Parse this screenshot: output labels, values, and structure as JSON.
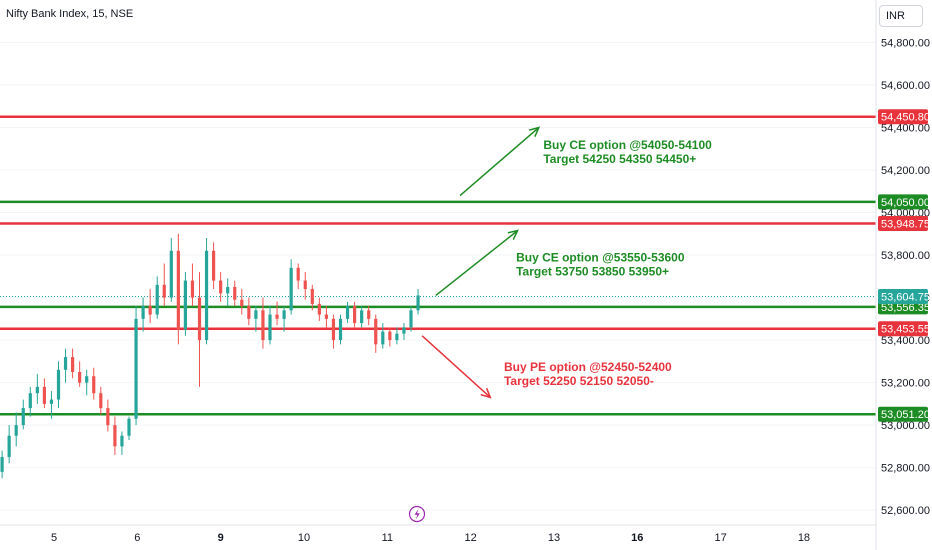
{
  "title": "Nifty Bank Index, 15, NSE",
  "currency": "INR",
  "colors": {
    "green": "#1e8c24",
    "red": "#e8333d",
    "candle_up": "#26a69a",
    "candle_down": "#ef5350",
    "price_line": "#26a69a"
  },
  "chart_data": {
    "type": "candlestick",
    "ylim": [
      52530,
      55000
    ],
    "y_ticks": [
      {
        "value": 54800,
        "label": "54,800.00"
      },
      {
        "value": 54600,
        "label": "54,600.00"
      },
      {
        "value": 54400,
        "label": "54,400.00"
      },
      {
        "value": 54200,
        "label": "54,200.00"
      },
      {
        "value": 54000,
        "label": "54,000.00"
      },
      {
        "value": 53800,
        "label": "53,800.00"
      },
      {
        "value": 53600,
        "label": "53,600.00"
      },
      {
        "value": 53400,
        "label": "53,400.00"
      },
      {
        "value": 53200,
        "label": "53,200.00"
      },
      {
        "value": 53000,
        "label": "53,000.00"
      },
      {
        "value": 52800,
        "label": "52,800.00"
      },
      {
        "value": 52600,
        "label": "52,600.00"
      }
    ],
    "x_ticks": [
      {
        "label": "5",
        "slot": 3.5,
        "bold": false
      },
      {
        "label": "6",
        "slot": 9,
        "bold": false
      },
      {
        "label": "9",
        "slot": 14.5,
        "bold": true
      },
      {
        "label": "10",
        "slot": 20,
        "bold": false
      },
      {
        "label": "11",
        "slot": 25.5,
        "bold": false
      },
      {
        "label": "12",
        "slot": 31,
        "bold": false
      },
      {
        "label": "13",
        "slot": 36.5,
        "bold": false
      },
      {
        "label": "16",
        "slot": 42,
        "bold": true
      },
      {
        "label": "17",
        "slot": 47.5,
        "bold": false
      },
      {
        "label": "18",
        "slot": 53,
        "bold": false
      }
    ],
    "levels": [
      {
        "value": 54450.8,
        "label": "54,450.80",
        "color": "red"
      },
      {
        "value": 54050.0,
        "label": "54,050.00",
        "color": "green"
      },
      {
        "value": 53948.75,
        "label": "53,948.75",
        "color": "red"
      },
      {
        "value": 53556.35,
        "label": "53,556.35",
        "color": "green"
      },
      {
        "value": 53453.55,
        "label": "53,453.55",
        "color": "red"
      },
      {
        "value": 53051.2,
        "label": "53,051.20",
        "color": "green"
      }
    ],
    "last_price": {
      "value": 53604.75,
      "label": "53,604.75"
    },
    "annotations": [
      {
        "lines": [
          "Buy CE option @54050-54100",
          "Target 54250 54350 54450+"
        ],
        "color": "green",
        "x_slot": 35.8,
        "y": 54300,
        "arrow": {
          "from": [
            30.3,
            54080
          ],
          "to": [
            35.5,
            54400
          ]
        }
      },
      {
        "lines": [
          "Buy CE option @53550-53600",
          "Target 53750 53850 53950+"
        ],
        "color": "green",
        "x_slot": 34.0,
        "y": 53770,
        "arrow": {
          "from": [
            28.7,
            53610
          ],
          "to": [
            34.1,
            53915
          ]
        }
      },
      {
        "lines": [
          "Buy PE option @52450-52400",
          "Target 52250 52150 52050-"
        ],
        "color": "red",
        "x_slot": 33.2,
        "y": 53255,
        "arrow": {
          "from": [
            27.8,
            53420
          ],
          "to": [
            32.3,
            53130
          ]
        }
      }
    ],
    "candles": [
      [
        52780,
        52880,
        52750,
        52850
      ],
      [
        52850,
        53000,
        52820,
        52950
      ],
      [
        52950,
        53060,
        52900,
        53000
      ],
      [
        53000,
        53120,
        52980,
        53080
      ],
      [
        53080,
        53180,
        53040,
        53150
      ],
      [
        53150,
        53240,
        53100,
        53180
      ],
      [
        53180,
        53220,
        53080,
        53100
      ],
      [
        53100,
        53160,
        53030,
        53120
      ],
      [
        53120,
        53300,
        53080,
        53260
      ],
      [
        53260,
        53360,
        53200,
        53320
      ],
      [
        53320,
        53360,
        53220,
        53250
      ],
      [
        53250,
        53300,
        53180,
        53200
      ],
      [
        53200,
        53260,
        53140,
        53230
      ],
      [
        53230,
        53270,
        53120,
        53150
      ],
      [
        53150,
        53180,
        53050,
        53080
      ],
      [
        53080,
        53120,
        52970,
        53000
      ],
      [
        53000,
        53040,
        52860,
        52900
      ],
      [
        52900,
        52970,
        52860,
        52950
      ],
      [
        52950,
        53040,
        52930,
        53030
      ],
      [
        53030,
        53560,
        53000,
        53500
      ],
      [
        53500,
        53600,
        53440,
        53560
      ],
      [
        53560,
        53640,
        53480,
        53520
      ],
      [
        53520,
        53700,
        53500,
        53660
      ],
      [
        53660,
        53760,
        53560,
        53600
      ],
      [
        53600,
        53880,
        53580,
        53820
      ],
      [
        53820,
        53900,
        53380,
        53450
      ],
      [
        53450,
        53720,
        53420,
        53680
      ],
      [
        53680,
        53760,
        53560,
        53600
      ],
      [
        53600,
        53720,
        53180,
        53400
      ],
      [
        53400,
        53880,
        53380,
        53820
      ],
      [
        53820,
        53860,
        53640,
        53680
      ],
      [
        53680,
        53720,
        53580,
        53620
      ],
      [
        53620,
        53690,
        53560,
        53650
      ],
      [
        53650,
        53680,
        53560,
        53590
      ],
      [
        53590,
        53640,
        53520,
        53560
      ],
      [
        53560,
        53600,
        53470,
        53500
      ],
      [
        53500,
        53560,
        53440,
        53540
      ],
      [
        53540,
        53600,
        53360,
        53400
      ],
      [
        53400,
        53560,
        53380,
        53520
      ],
      [
        53520,
        53580,
        53470,
        53500
      ],
      [
        53500,
        53560,
        53440,
        53540
      ],
      [
        53540,
        53780,
        53520,
        53740
      ],
      [
        53740,
        53760,
        53640,
        53680
      ],
      [
        53680,
        53720,
        53590,
        53640
      ],
      [
        53640,
        53660,
        53540,
        53570
      ],
      [
        53570,
        53600,
        53490,
        53520
      ],
      [
        53520,
        53560,
        53460,
        53500
      ],
      [
        53500,
        53520,
        53360,
        53400
      ],
      [
        53400,
        53520,
        53380,
        53500
      ],
      [
        53500,
        53580,
        53480,
        53560
      ],
      [
        53560,
        53580,
        53460,
        53480
      ],
      [
        53480,
        53560,
        53460,
        53540
      ],
      [
        53540,
        53560,
        53470,
        53500
      ],
      [
        53500,
        53520,
        53340,
        53380
      ],
      [
        53380,
        53480,
        53360,
        53440
      ],
      [
        53440,
        53460,
        53370,
        53400
      ],
      [
        53400,
        53460,
        53380,
        53430
      ],
      [
        53430,
        53480,
        53400,
        53460
      ],
      [
        53460,
        53560,
        53440,
        53540
      ],
      [
        53540,
        53640,
        53520,
        53610
      ]
    ]
  }
}
